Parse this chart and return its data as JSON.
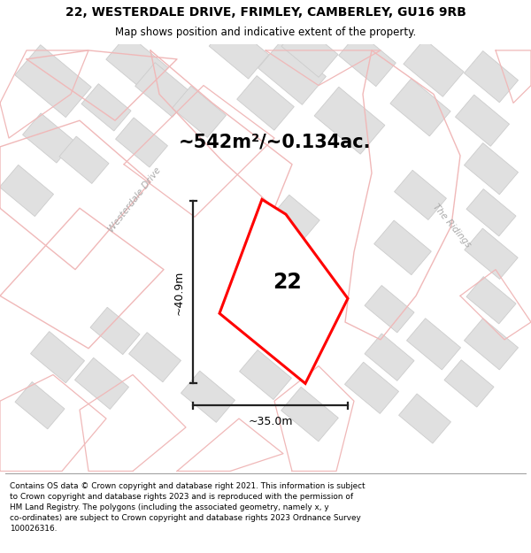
{
  "title_line1": "22, WESTERDALE DRIVE, FRIMLEY, CAMBERLEY, GU16 9RB",
  "title_line2": "Map shows position and indicative extent of the property.",
  "area_text": "~542m²/~0.134ac.",
  "number_label": "22",
  "dim_height": "~40.9m",
  "dim_width": "~35.0m",
  "footer_lines": [
    "Contains OS data © Crown copyright and database right 2021. This information is subject",
    "to Crown copyright and database rights 2023 and is reproduced with the permission of",
    "HM Land Registry. The polygons (including the associated geometry, namely x, y",
    "co-ordinates) are subject to Crown copyright and database rights 2023 Ordnance Survey",
    "100026316."
  ],
  "map_bg": "#ffffff",
  "plot_fill": "#f5f5f5",
  "plot_edge": "#ff0000",
  "road_color": "#f0b8b8",
  "building_fill": "#e0e0e0",
  "building_edge": "#cccccc",
  "dim_color": "#222222",
  "road_label_color": "#aaaaaa",
  "title_fontsize": 10,
  "subtitle_fontsize": 8.5,
  "area_fontsize": 15,
  "label_fontsize": 17,
  "footer_fontsize": 6.4
}
